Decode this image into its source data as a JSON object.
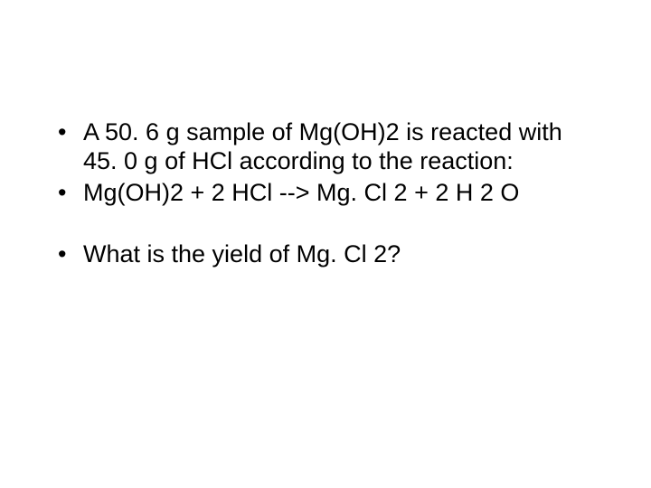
{
  "slide": {
    "background_color": "#ffffff",
    "text_color": "#000000",
    "font_family": "Arial",
    "font_size_pt": 20,
    "bullets": {
      "b1": "A 50. 6 g sample of Mg(OH)2 is reacted with 45. 0 g of HCl according to the reaction:",
      "b2": "Mg(OH)2 + 2 HCl --> Mg. Cl 2 + 2 H 2 O",
      "b3": "What is the yield of Mg. Cl 2?"
    }
  }
}
